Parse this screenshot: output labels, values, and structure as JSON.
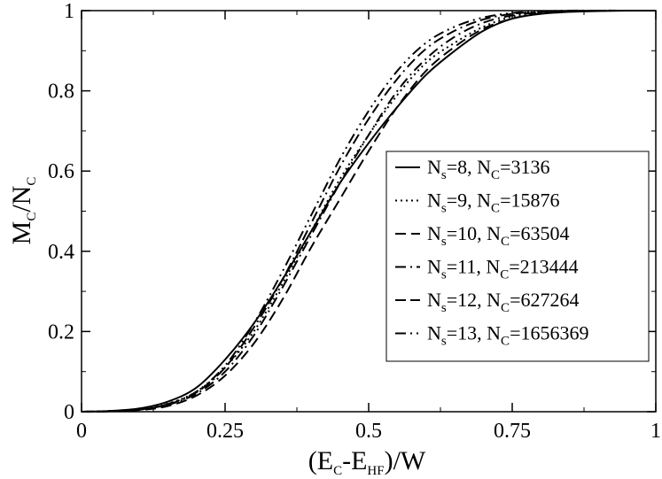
{
  "chart_data": {
    "type": "line",
    "title": "",
    "xlabel": "(E_C-E_HF)/W",
    "ylabel": "M_C/N_C",
    "xlim": [
      0,
      1
    ],
    "ylim": [
      0,
      1
    ],
    "x_ticks": [
      "0",
      "0.25",
      "0.5",
      "0.75",
      "1"
    ],
    "y_ticks": [
      "0",
      "0.2",
      "0.4",
      "0.6",
      "0.8",
      "1"
    ],
    "grid": false,
    "legend_position": "center-right",
    "x": [
      0,
      0.05,
      0.1,
      0.15,
      0.2,
      0.25,
      0.3,
      0.35,
      0.4,
      0.45,
      0.5,
      0.55,
      0.6,
      0.65,
      0.7,
      0.75,
      0.8,
      0.85,
      0.9,
      0.95,
      1
    ],
    "series": [
      {
        "name": "N_s=8, N_C=3136",
        "ns": "8",
        "nc": "3136",
        "dash": "",
        "values": [
          0,
          0.002,
          0.008,
          0.025,
          0.06,
          0.13,
          0.22,
          0.33,
          0.45,
          0.57,
          0.67,
          0.76,
          0.84,
          0.9,
          0.95,
          0.98,
          0.992,
          0.997,
          0.999,
          1,
          1
        ]
      },
      {
        "name": "N_s=9, N_C=15876",
        "ns": "9",
        "nc": "15876",
        "dash": "2,4",
        "values": [
          0,
          0.002,
          0.006,
          0.02,
          0.05,
          0.11,
          0.2,
          0.32,
          0.45,
          0.58,
          0.69,
          0.79,
          0.87,
          0.92,
          0.96,
          0.985,
          0.995,
          0.998,
          1,
          1,
          1
        ]
      },
      {
        "name": "N_s=10, N_C=63504",
        "ns": "10",
        "nc": "63504",
        "dash": "12,6",
        "values": [
          0,
          0.001,
          0.004,
          0.014,
          0.04,
          0.09,
          0.17,
          0.28,
          0.41,
          0.53,
          0.65,
          0.76,
          0.85,
          0.91,
          0.955,
          0.98,
          0.993,
          0.998,
          1,
          1,
          1
        ]
      },
      {
        "name": "N_s=11, N_C=213444",
        "ns": "11",
        "nc": "213444",
        "dash": "12,5,2,5",
        "values": [
          0,
          0.001,
          0.005,
          0.017,
          0.045,
          0.1,
          0.19,
          0.31,
          0.44,
          0.57,
          0.69,
          0.8,
          0.88,
          0.935,
          0.97,
          0.988,
          0.996,
          0.999,
          1,
          1,
          1
        ]
      },
      {
        "name": "N_s=12, N_C=627264",
        "ns": "12",
        "nc": "627264",
        "dash": "12,5,12,5,2,5",
        "values": [
          0,
          0.001,
          0.005,
          0.018,
          0.048,
          0.11,
          0.21,
          0.33,
          0.47,
          0.61,
          0.73,
          0.83,
          0.905,
          0.95,
          0.978,
          0.992,
          0.997,
          0.999,
          1,
          1,
          1
        ]
      },
      {
        "name": "N_s=13, N_C=1656369",
        "ns": "13",
        "nc": "1656369",
        "dash": "12,5,2,5,2,5",
        "values": [
          0,
          0.001,
          0.005,
          0.019,
          0.05,
          0.115,
          0.22,
          0.35,
          0.49,
          0.63,
          0.75,
          0.85,
          0.92,
          0.96,
          0.983,
          0.994,
          0.998,
          1,
          1,
          1,
          1
        ]
      }
    ]
  }
}
